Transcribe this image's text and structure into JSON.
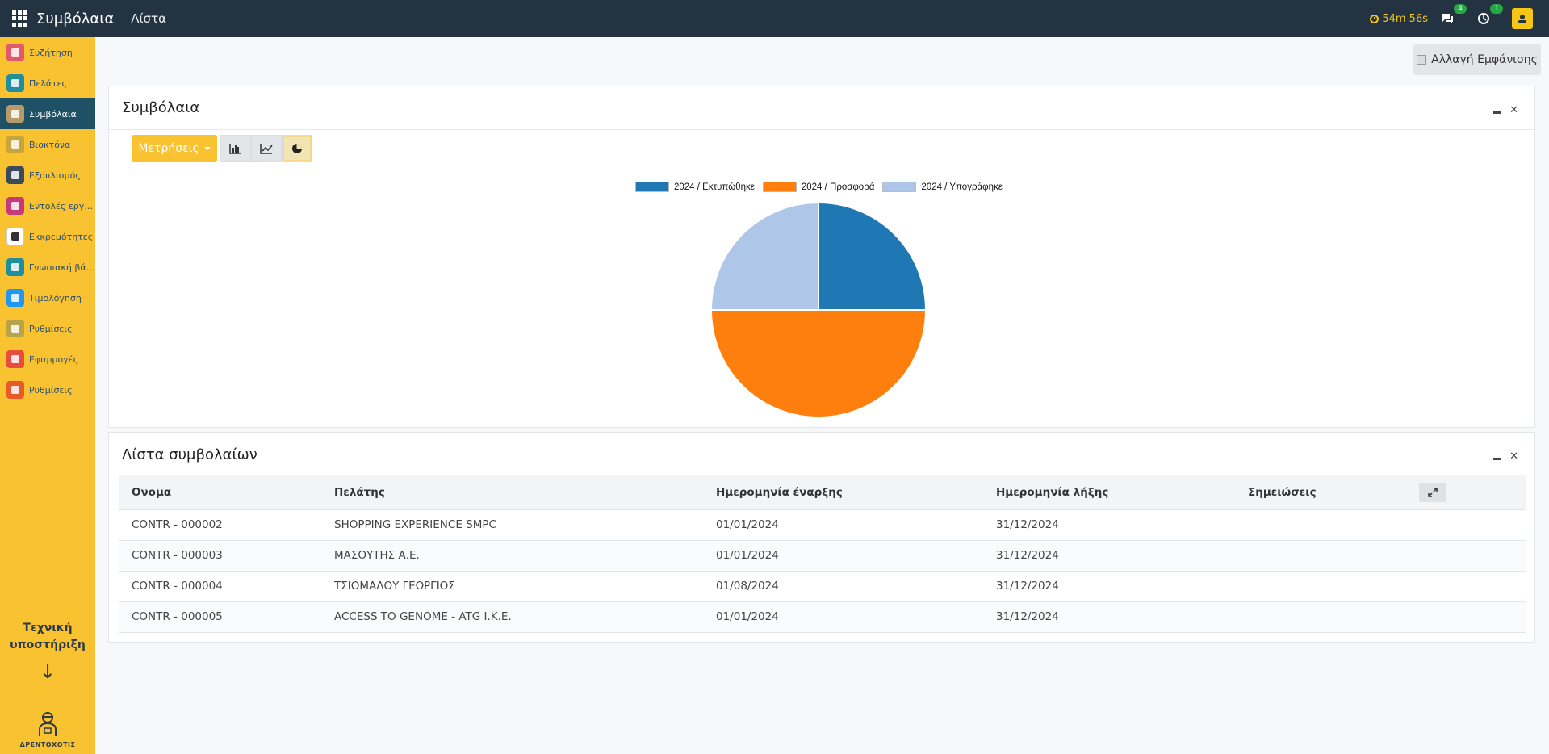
{
  "topbar": {
    "app_name": "Συμβόλαια",
    "menu_link": "Λίστα",
    "timer": "54m 56s",
    "messages_count": "4",
    "activities_count": "1"
  },
  "sidebar": {
    "items": [
      {
        "label": "Συζήτηση",
        "icon": "chat-icon",
        "color": "#e05a6b"
      },
      {
        "label": "Πελάτες",
        "icon": "users-icon",
        "color": "#1f8f9e"
      },
      {
        "label": "Συμβόλαια",
        "icon": "contract-icon",
        "color": "#b89b6b"
      },
      {
        "label": "Βιοκτόνα",
        "icon": "bug-icon",
        "color": "#c9a43a"
      },
      {
        "label": "Εξοπλισμός",
        "icon": "tools-icon",
        "color": "#3a4a5a"
      },
      {
        "label": "Εντολές εργασίας",
        "icon": "workorder-icon",
        "color": "#c43a7a"
      },
      {
        "label": "Εκκρεμότητες",
        "icon": "pen-icon",
        "color": "#ffffff"
      },
      {
        "label": "Γνωσιακή βάση",
        "icon": "book-icon",
        "color": "#1f8f9e"
      },
      {
        "label": "Τιμολόγηση",
        "icon": "invoice-icon",
        "color": "#2196f3"
      },
      {
        "label": "Ρυθμίσεις",
        "icon": "gear-icon",
        "color": "#b8a24a"
      },
      {
        "label": "Εφαρμογές",
        "icon": "apps-color-icon",
        "color": "#e84c3d"
      },
      {
        "label": "Ρυθμίσεις",
        "icon": "odoo-settings-icon",
        "color": "#e85a2a"
      }
    ],
    "support_line1": "Τεχνική",
    "support_line2": "υποστήριξη",
    "logo_text": "ΔΡΕΝΤΟΧΟΤΙΣ"
  },
  "toolbar": {
    "control_label": "Αλλαγή Εμφάνισης"
  },
  "chart_panel": {
    "title": "Συμβόλαια",
    "measures_label": "Μετρήσεις"
  },
  "chart_data": {
    "type": "pie",
    "slices": [
      {
        "label": "2024 / Εκτυπώθηκε",
        "value": 1,
        "color": "#1f77b4"
      },
      {
        "label": "2024 / Προσφορά",
        "value": 2,
        "color": "#ff7f0e"
      },
      {
        "label": "2024 / Υπογράφηκε",
        "value": 1,
        "color": "#aec7e8"
      }
    ],
    "legend_position": "top"
  },
  "list_panel": {
    "title": "Λίστα συμβολαίων",
    "columns": [
      "Ονομα",
      "Πελάτης",
      "Ημερομηνία έναρξης",
      "Ημερομηνία λήξης",
      "Σημειώσεις"
    ],
    "rows": [
      [
        "CONTR - 000002",
        "SHOPPING EXPERIENCE SMPC",
        "01/01/2024",
        "31/12/2024",
        ""
      ],
      [
        "CONTR - 000003",
        "ΜΑΣΟΥΤΗΣ Α.Ε.",
        "01/01/2024",
        "31/12/2024",
        ""
      ],
      [
        "CONTR - 000004",
        "ΤΣΙΟΜΑΛΟΥ ΓΕΩΡΓΙΟΣ",
        "01/08/2024",
        "31/12/2024",
        ""
      ],
      [
        "CONTR - 000005",
        "ACCESS TO GENOME - ATG I.K.E.",
        "01/01/2024",
        "31/12/2024",
        ""
      ]
    ]
  }
}
